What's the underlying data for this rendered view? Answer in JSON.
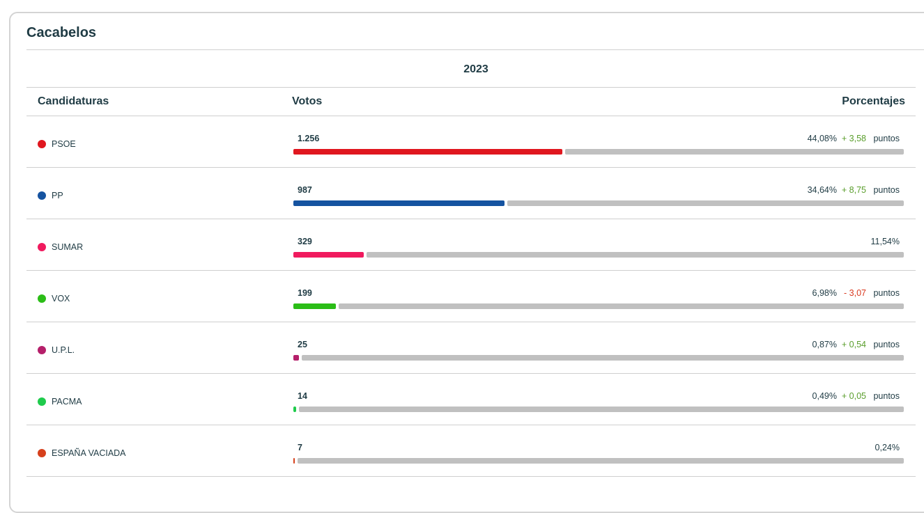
{
  "title": "Cacabelos",
  "year": "2023",
  "headers": {
    "party": "Candidaturas",
    "votes": "Votos",
    "percent": "Porcentajes"
  },
  "rows": [
    {
      "party": "PSOE",
      "color": "#e0171f",
      "votes": "1.256",
      "percent": {
        "value": 44.08,
        "label": "44,08%"
      },
      "change": "+ 3,58",
      "change_color": "#5a9e2c",
      "unit": "puntos"
    },
    {
      "party": "PP",
      "color": "#1553a0",
      "votes": "987",
      "percent": {
        "value": 34.64,
        "label": "34,64%"
      },
      "change": "+ 8,75",
      "change_color": "#5a9e2c",
      "unit": "puntos"
    },
    {
      "party": "SUMAR",
      "color": "#f01a5e",
      "votes": "329",
      "percent": {
        "value": 11.54,
        "label": "11,54%"
      }
    },
    {
      "party": "VOX",
      "color": "#2bbd17",
      "votes": "199",
      "percent": {
        "value": 6.98,
        "label": "6,98%"
      },
      "change": "- 3,07",
      "change_color": "#d9381e",
      "unit": "puntos"
    },
    {
      "party": "U.P.L.",
      "color": "#b51f6a",
      "votes": "25",
      "percent": {
        "value": 0.87,
        "label": "0,87%"
      },
      "change": "+ 0,54",
      "change_color": "#5a9e2c",
      "unit": "puntos"
    },
    {
      "party": "PACMA",
      "color": "#1fcb4c",
      "votes": "14",
      "percent": {
        "value": 0.49,
        "label": "0,49%"
      },
      "change": "+ 0,05",
      "change_color": "#5a9e2c",
      "unit": "puntos"
    },
    {
      "party": "ESPAÑA VACIADA",
      "color": "#d6401c",
      "votes": "7",
      "percent": {
        "value": 0.24,
        "label": "0,24%"
      }
    }
  ]
}
